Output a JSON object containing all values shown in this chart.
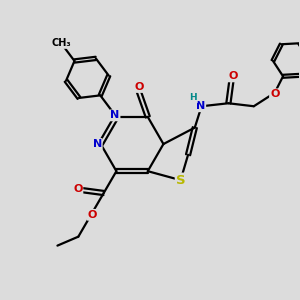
{
  "background_color": "#dcdcdc",
  "atom_colors": {
    "C": "#000000",
    "N": "#0000cc",
    "O": "#cc0000",
    "S": "#b8b800",
    "H": "#008888"
  },
  "bond_color": "#000000",
  "bond_width": 1.6,
  "figsize": [
    3.0,
    3.0
  ],
  "dpi": 100
}
